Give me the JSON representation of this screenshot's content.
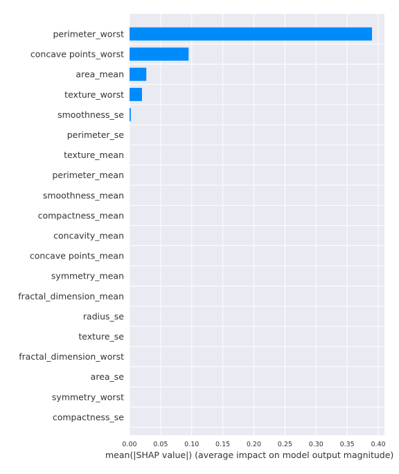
{
  "chart_data": {
    "type": "bar",
    "orientation": "horizontal",
    "categories": [
      "perimeter_worst",
      "concave points_worst",
      "area_mean",
      "texture_worst",
      "smoothness_se",
      "perimeter_se",
      "texture_mean",
      "perimeter_mean",
      "smoothness_mean",
      "compactness_mean",
      "concavity_mean",
      "concave points_mean",
      "symmetry_mean",
      "fractal_dimension_mean",
      "radius_se",
      "texture_se",
      "fractal_dimension_worst",
      "area_se",
      "symmetry_worst",
      "compactness_se"
    ],
    "values": [
      0.39,
      0.095,
      0.027,
      0.02,
      0.002,
      0,
      0,
      0,
      0,
      0,
      0,
      0,
      0,
      0,
      0,
      0,
      0,
      0,
      0,
      0
    ],
    "xlabel": "mean(|SHAP value|) (average impact on model output magnitude)",
    "xlim": [
      0,
      0.41
    ],
    "xticks": [
      "0.00",
      "0.05",
      "0.10",
      "0.15",
      "0.20",
      "0.25",
      "0.30",
      "0.35",
      "0.40"
    ],
    "grid": true,
    "colors": {
      "bar": "#008bfb",
      "background": "#eaeaf2",
      "grid": "#ffffff"
    }
  }
}
